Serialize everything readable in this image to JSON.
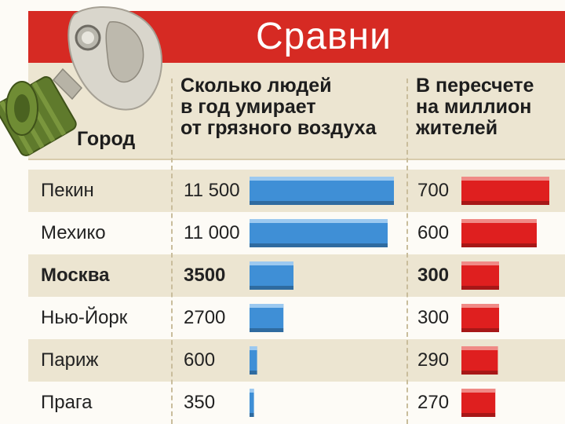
{
  "header": {
    "title": "Сравни"
  },
  "columns": {
    "city": "Город",
    "deaths": "Сколько людей\nв год умирает\nот грязного воздуха",
    "per_million": "В пересчете\nна миллион\nжителей"
  },
  "rows": [
    {
      "city": "Пекин",
      "deaths_label": "11 500",
      "per_million_label": "700",
      "bold": false
    },
    {
      "city": "Мехико",
      "deaths_label": "11 000",
      "per_million_label": "600",
      "bold": false
    },
    {
      "city": "Москва",
      "deaths_label": "3500",
      "per_million_label": "300",
      "bold": true
    },
    {
      "city": "Нью-Йорк",
      "deaths_label": "2700",
      "per_million_label": "300",
      "bold": false
    },
    {
      "city": "Париж",
      "deaths_label": "600",
      "per_million_label": "290",
      "bold": false
    },
    {
      "city": "Прага",
      "deaths_label": "350",
      "per_million_label": "270",
      "bold": false
    }
  ],
  "colors": {
    "header_red": "#d62a23",
    "deaths_bar": "#3f8fd6",
    "per_million_bar": "#df1f1f",
    "band": "#ece5d1"
  },
  "icons": [
    "gas-mask-icon"
  ],
  "chart_data": [
    {
      "type": "bar",
      "categories": [
        "Пекин",
        "Мехико",
        "Москва",
        "Нью-Йорк",
        "Париж",
        "Прага"
      ],
      "values": [
        11500,
        11000,
        3500,
        2700,
        600,
        350
      ],
      "orientation": "horizontal",
      "color": "#3f8fd6"
    },
    {
      "type": "bar",
      "categories": [
        "Пекин",
        "Мехико",
        "Москва",
        "Нью-Йорк",
        "Париж",
        "Прага"
      ],
      "values": [
        700,
        600,
        300,
        300,
        290,
        270
      ],
      "orientation": "horizontal",
      "color": "#df1f1f"
    }
  ]
}
